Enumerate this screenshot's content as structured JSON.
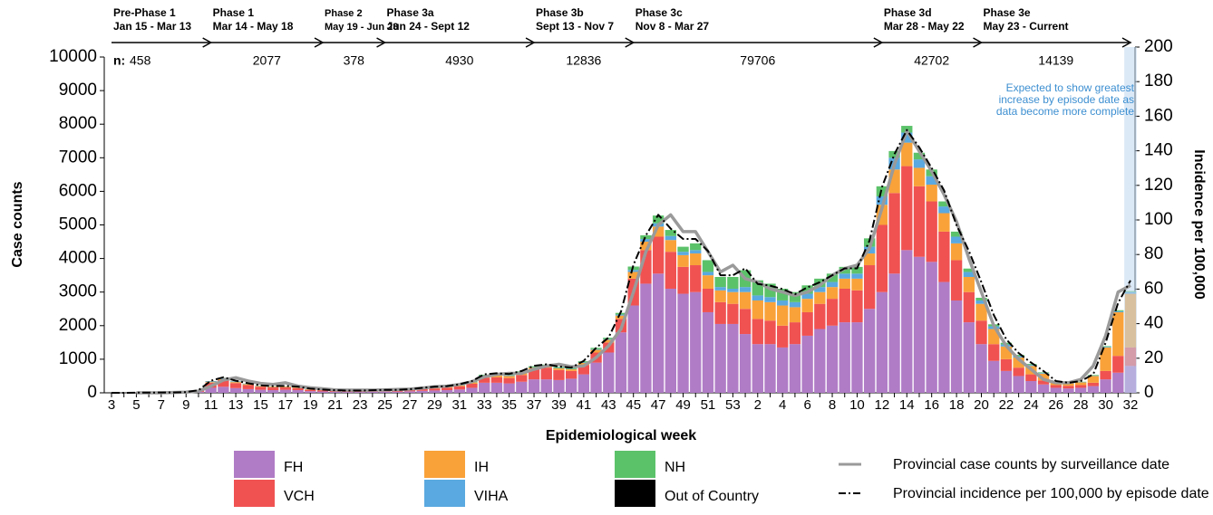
{
  "chart_data": {
    "type": "bar",
    "stacked": true,
    "x_label": "Epidemiological week",
    "y_label": "Case counts",
    "y2_label": "Incidence per 100,000",
    "categories": [
      "3",
      null,
      "5",
      null,
      "7",
      null,
      "9",
      null,
      "11",
      null,
      "13",
      null,
      "15",
      null,
      "17",
      null,
      "19",
      null,
      "21",
      null,
      "23",
      null,
      "25",
      null,
      "27",
      null,
      "29",
      null,
      "31",
      null,
      "33",
      null,
      "35",
      null,
      "37",
      null,
      "39",
      null,
      "41",
      null,
      "43",
      null,
      "45",
      null,
      "47",
      null,
      "49",
      null,
      "51",
      null,
      "53",
      null,
      "2",
      null,
      "4",
      null,
      "6",
      null,
      "8",
      null,
      "10",
      null,
      "12",
      null,
      "14",
      null,
      "16",
      null,
      "18",
      null,
      "20",
      null,
      "22",
      null,
      "24",
      null,
      "26",
      null,
      "28",
      null,
      "30",
      null,
      "32"
    ],
    "ylim": [
      0,
      10000
    ],
    "yticks": [
      0,
      1000,
      2000,
      3000,
      4000,
      5000,
      6000,
      7000,
      8000,
      9000,
      10000
    ],
    "y2lim": [
      0,
      200
    ],
    "y2ticks": [
      0,
      20,
      40,
      60,
      80,
      100,
      120,
      140,
      160,
      180,
      200
    ],
    "series": [
      {
        "name": "FH",
        "color": "#b07cc6",
        "values": [
          0,
          0,
          2,
          2,
          4,
          4,
          8,
          30,
          150,
          180,
          140,
          110,
          90,
          80,
          90,
          80,
          50,
          40,
          30,
          25,
          25,
          30,
          35,
          35,
          45,
          60,
          70,
          80,
          100,
          150,
          300,
          300,
          280,
          330,
          400,
          400,
          380,
          420,
          550,
          900,
          1200,
          1800,
          2600,
          3250,
          3550,
          3100,
          2950,
          3000,
          2400,
          2050,
          2050,
          1750,
          1450,
          1450,
          1350,
          1450,
          1700,
          1900,
          2000,
          2100,
          2100,
          2500,
          3000,
          3550,
          4250,
          4050,
          3900,
          3300,
          2750,
          2100,
          1450,
          950,
          650,
          500,
          350,
          250,
          150,
          130,
          150,
          200,
          400,
          600,
          800
        ]
      },
      {
        "name": "VCH",
        "color": "#f05252",
        "values": [
          0,
          0,
          2,
          2,
          4,
          4,
          10,
          40,
          150,
          200,
          150,
          120,
          90,
          80,
          70,
          60,
          40,
          35,
          30,
          25,
          25,
          25,
          30,
          30,
          35,
          50,
          60,
          70,
          90,
          120,
          150,
          160,
          160,
          200,
          300,
          350,
          300,
          230,
          280,
          300,
          300,
          400,
          800,
          1000,
          1100,
          1100,
          800,
          800,
          700,
          650,
          600,
          750,
          750,
          700,
          650,
          650,
          700,
          750,
          800,
          1000,
          950,
          1300,
          2000,
          2400,
          2500,
          2100,
          1800,
          1500,
          1200,
          900,
          700,
          500,
          350,
          250,
          200,
          120,
          80,
          80,
          80,
          100,
          250,
          500,
          550
        ]
      },
      {
        "name": "IH",
        "color": "#f9a23a",
        "values": [
          0,
          0,
          0,
          0,
          1,
          1,
          1,
          5,
          20,
          30,
          30,
          25,
          20,
          20,
          20,
          20,
          15,
          10,
          8,
          8,
          8,
          10,
          10,
          10,
          12,
          15,
          20,
          25,
          30,
          40,
          50,
          60,
          60,
          60,
          50,
          50,
          50,
          50,
          60,
          80,
          80,
          100,
          200,
          250,
          300,
          350,
          350,
          350,
          400,
          350,
          350,
          500,
          550,
          550,
          600,
          450,
          400,
          350,
          350,
          300,
          350,
          350,
          600,
          700,
          700,
          550,
          500,
          550,
          500,
          450,
          500,
          450,
          380,
          300,
          250,
          200,
          80,
          70,
          80,
          200,
          700,
          1300,
          1600
        ]
      },
      {
        "name": "VIHA",
        "color": "#5aa9e0",
        "values": [
          0,
          0,
          0,
          0,
          0,
          0,
          1,
          2,
          15,
          20,
          15,
          10,
          8,
          5,
          5,
          5,
          5,
          5,
          3,
          3,
          3,
          3,
          3,
          3,
          3,
          5,
          5,
          5,
          10,
          10,
          15,
          20,
          20,
          20,
          10,
          10,
          10,
          10,
          15,
          20,
          20,
          30,
          60,
          80,
          100,
          120,
          100,
          100,
          100,
          100,
          100,
          150,
          150,
          150,
          150,
          150,
          150,
          150,
          150,
          150,
          150,
          200,
          250,
          350,
          300,
          250,
          250,
          200,
          200,
          150,
          100,
          80,
          60,
          40,
          30,
          20,
          10,
          10,
          10,
          10,
          20,
          30,
          50
        ]
      },
      {
        "name": "NH",
        "color": "#5cc26a",
        "values": [
          0,
          0,
          0,
          0,
          0,
          0,
          0,
          1,
          5,
          10,
          5,
          5,
          5,
          5,
          5,
          5,
          5,
          5,
          3,
          3,
          3,
          3,
          5,
          5,
          5,
          10,
          15,
          15,
          15,
          20,
          25,
          30,
          30,
          30,
          30,
          30,
          30,
          30,
          35,
          40,
          40,
          50,
          100,
          110,
          230,
          180,
          150,
          200,
          350,
          300,
          350,
          500,
          450,
          400,
          350,
          300,
          250,
          250,
          250,
          200,
          200,
          250,
          300,
          200,
          200,
          200,
          200,
          150,
          150,
          100,
          80,
          60,
          50,
          40,
          30,
          20,
          10,
          10,
          10,
          20,
          20,
          30,
          30
        ]
      },
      {
        "name": "Out of Country",
        "color": "#000000",
        "values": [
          0,
          0,
          0,
          0,
          0,
          0,
          0,
          0,
          5,
          5,
          2,
          2,
          0,
          0,
          0,
          0,
          0,
          0,
          0,
          0,
          0,
          0,
          0,
          0,
          0,
          0,
          0,
          0,
          0,
          0,
          0,
          0,
          0,
          0,
          0,
          0,
          0,
          0,
          0,
          0,
          0,
          0,
          0,
          0,
          0,
          0,
          0,
          0,
          0,
          0,
          0,
          0,
          0,
          0,
          0,
          0,
          0,
          0,
          0,
          0,
          0,
          0,
          0,
          0,
          0,
          0,
          0,
          0,
          0,
          0,
          0,
          0,
          0,
          0,
          0,
          0,
          0,
          0,
          0,
          0,
          0,
          0,
          0
        ]
      },
      {
        "name": "Provincial case counts by surveillance date",
        "type": "line",
        "color": "#9a9a9a",
        "values": [
          null,
          null,
          0,
          0,
          0,
          10,
          20,
          50,
          200,
          380,
          450,
          350,
          280,
          250,
          300,
          200,
          150,
          120,
          90,
          80,
          80,
          80,
          90,
          100,
          110,
          140,
          180,
          200,
          250,
          330,
          480,
          550,
          580,
          580,
          700,
          800,
          850,
          780,
          800,
          1050,
          1400,
          1900,
          3000,
          4200,
          5000,
          5300,
          4800,
          4800,
          4200,
          3600,
          3800,
          3400,
          3300,
          3100,
          3000,
          2900,
          3000,
          3200,
          3500,
          3700,
          3800,
          4300,
          5500,
          6800,
          7800,
          7200,
          6600,
          5900,
          5100,
          4000,
          3000,
          2000,
          1400,
          1000,
          700,
          400,
          300,
          300,
          400,
          800,
          1700,
          3000,
          3200
        ]
      },
      {
        "name": "Provincial incidence per 100,000 by episode date",
        "type": "line",
        "axis": "y2",
        "dash": true,
        "color": "#000000",
        "values": [
          0,
          0,
          0.1,
          0.1,
          0.2,
          0.2,
          0.4,
          1.5,
          7,
          9,
          7,
          5.5,
          4.3,
          3.9,
          4,
          3.5,
          2.4,
          1.9,
          1.5,
          1.3,
          1.3,
          1.5,
          1.7,
          1.7,
          2.1,
          2.9,
          3.5,
          3.9,
          4.9,
          6.8,
          10.7,
          11.3,
          10.9,
          12.6,
          15.6,
          16.5,
          15.2,
          14.6,
          18.5,
          26,
          32,
          47,
          74,
          91,
          103,
          95,
          89,
          89,
          82,
          68,
          68,
          72,
          63,
          62,
          60,
          57,
          61,
          64,
          68,
          72,
          72,
          88,
          119,
          138,
          152,
          142,
          130,
          117,
          97,
          82,
          64,
          45,
          31,
          23,
          17.5,
          12.6,
          6.8,
          5.8,
          6.8,
          10.7,
          29,
          52,
          65
        ]
      }
    ],
    "n_label": "n:",
    "phases": [
      {
        "name": "Pre-Phase 1",
        "dates": "Jan 15 - Mar 13",
        "n": 458
      },
      {
        "name": "Phase 1",
        "dates": "Mar 14 - May 18",
        "n": 2077
      },
      {
        "name": "Phase 2",
        "dates": "May 19 - Jun 23",
        "n": 378
      },
      {
        "name": "Phase 3a",
        "dates": "Jun 24 - Sept 12",
        "n": 4930
      },
      {
        "name": "Phase 3b",
        "dates": "Sept 13 - Nov 7",
        "n": 12836
      },
      {
        "name": "Phase 3c",
        "dates": "Nov 8 - Mar 27",
        "n": 79706
      },
      {
        "name": "Phase 3d",
        "dates": "Mar 28 - May 22",
        "n": 42702
      },
      {
        "name": "Phase 3e",
        "dates": "May 23 - Current",
        "n": 14139
      }
    ],
    "note": [
      "Expected to show greatest",
      "increase by episode date as",
      "data become more complete"
    ]
  }
}
